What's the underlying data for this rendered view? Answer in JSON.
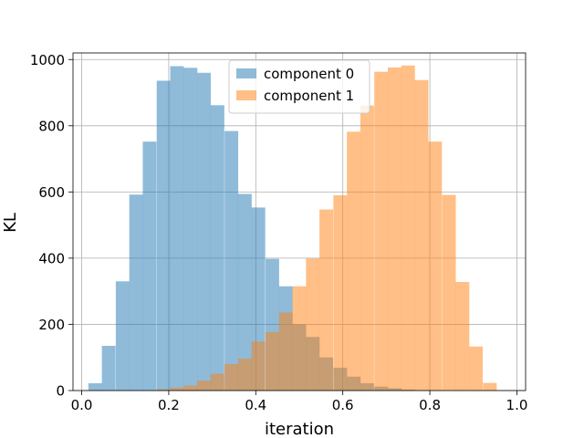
{
  "chart_data": {
    "type": "bar",
    "xlabel": "iteration",
    "ylabel": "KL",
    "xlim": [
      -0.02,
      1.02
    ],
    "ylim": [
      0,
      1020
    ],
    "grid": true,
    "legend_position": "top-center",
    "xticks": [
      "0.0",
      "0.2",
      "0.4",
      "0.6",
      "0.8",
      "1.0"
    ],
    "yticks": [
      "0",
      "200",
      "400",
      "600",
      "800",
      "1000"
    ],
    "bin_width": 0.0313,
    "series": [
      {
        "name": "component 0",
        "color": "#1f77b4",
        "opacity": 0.5,
        "bins": [
          {
            "x": 0.031,
            "y": 22
          },
          {
            "x": 0.062,
            "y": 135
          },
          {
            "x": 0.094,
            "y": 330
          },
          {
            "x": 0.125,
            "y": 592
          },
          {
            "x": 0.156,
            "y": 752
          },
          {
            "x": 0.188,
            "y": 936
          },
          {
            "x": 0.219,
            "y": 980
          },
          {
            "x": 0.25,
            "y": 975
          },
          {
            "x": 0.281,
            "y": 960
          },
          {
            "x": 0.312,
            "y": 862
          },
          {
            "x": 0.344,
            "y": 784
          },
          {
            "x": 0.375,
            "y": 594
          },
          {
            "x": 0.406,
            "y": 553
          },
          {
            "x": 0.438,
            "y": 398
          },
          {
            "x": 0.469,
            "y": 315
          },
          {
            "x": 0.5,
            "y": 200
          },
          {
            "x": 0.531,
            "y": 162
          },
          {
            "x": 0.562,
            "y": 100
          },
          {
            "x": 0.594,
            "y": 69
          },
          {
            "x": 0.625,
            "y": 42
          },
          {
            "x": 0.656,
            "y": 22
          },
          {
            "x": 0.688,
            "y": 12
          },
          {
            "x": 0.719,
            "y": 7
          },
          {
            "x": 0.75,
            "y": 3
          },
          {
            "x": 0.781,
            "y": 1
          }
        ]
      },
      {
        "name": "component 1",
        "color": "#ff7f0e",
        "opacity": 0.5,
        "bins": [
          {
            "x": 0.188,
            "y": 4
          },
          {
            "x": 0.219,
            "y": 9
          },
          {
            "x": 0.25,
            "y": 15
          },
          {
            "x": 0.281,
            "y": 30
          },
          {
            "x": 0.312,
            "y": 51
          },
          {
            "x": 0.344,
            "y": 80
          },
          {
            "x": 0.375,
            "y": 96
          },
          {
            "x": 0.406,
            "y": 148
          },
          {
            "x": 0.438,
            "y": 177
          },
          {
            "x": 0.469,
            "y": 236
          },
          {
            "x": 0.5,
            "y": 315
          },
          {
            "x": 0.531,
            "y": 399
          },
          {
            "x": 0.562,
            "y": 547
          },
          {
            "x": 0.594,
            "y": 590
          },
          {
            "x": 0.625,
            "y": 782
          },
          {
            "x": 0.656,
            "y": 861
          },
          {
            "x": 0.688,
            "y": 963
          },
          {
            "x": 0.719,
            "y": 976
          },
          {
            "x": 0.75,
            "y": 982
          },
          {
            "x": 0.781,
            "y": 938
          },
          {
            "x": 0.812,
            "y": 752
          },
          {
            "x": 0.844,
            "y": 591
          },
          {
            "x": 0.875,
            "y": 328
          },
          {
            "x": 0.906,
            "y": 133
          },
          {
            "x": 0.938,
            "y": 23
          }
        ]
      }
    ]
  }
}
